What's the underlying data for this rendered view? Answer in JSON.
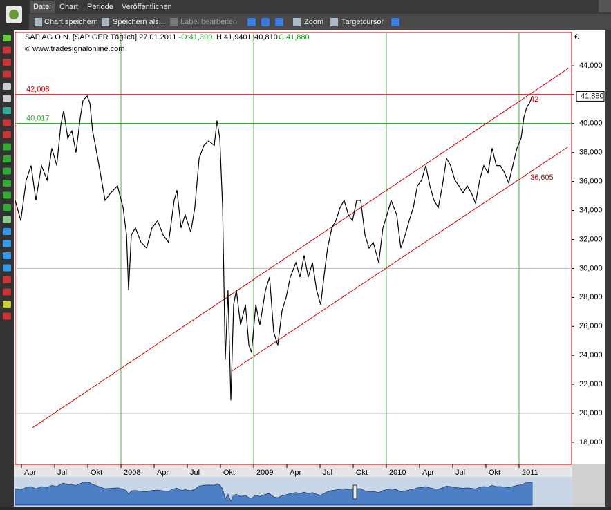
{
  "menu": [
    "Datei",
    "Chart",
    "Periode",
    "Veröffentlichen"
  ],
  "toolbar": [
    "Chart speichern",
    "Speichern als...",
    "Label bearbeiten",
    "Zoom",
    "Targetcursor"
  ],
  "chart_data": {
    "type": "line",
    "title": "SAP AG O.N. [SAP GER  Täglich] 27.01.2011 -",
    "ohlc": [
      "O:41,390",
      "H:41,940",
      "L:40,810",
      "C:41,880"
    ],
    "subtitle": "© www.tradesignalonline.com",
    "unit": "€",
    "color": "#000000",
    "x": [
      2007.203,
      2007.245,
      2007.286,
      2007.323,
      2007.359,
      2007.401,
      2007.443,
      2007.479,
      2007.516,
      2007.547,
      2007.568,
      2007.599,
      2007.63,
      2007.661,
      2007.693,
      2007.714,
      2007.745,
      2007.766,
      2007.786,
      2007.807,
      2007.844,
      2007.88,
      2007.922,
      2007.974,
      2008.016,
      2008.042,
      2008.057,
      2008.078,
      2008.109,
      2008.151,
      2008.193,
      2008.234,
      2008.276,
      2008.318,
      2008.359,
      2008.401,
      2008.422,
      2008.453,
      2008.484,
      2008.526,
      2008.557,
      2008.589,
      2008.625,
      2008.661,
      2008.703,
      2008.724,
      2008.745,
      2008.766,
      2008.786,
      2008.807,
      2008.828,
      2008.849,
      2008.87,
      2008.901,
      2008.938,
      2008.964,
      2008.984,
      2009.016,
      2009.047,
      2009.089,
      2009.12,
      2009.151,
      2009.182,
      2009.214,
      2009.245,
      2009.276,
      2009.318,
      2009.349,
      2009.38,
      2009.411,
      2009.443,
      2009.474,
      2009.505,
      2009.536,
      2009.557,
      2009.589,
      2009.62,
      2009.651,
      2009.682,
      2009.714,
      2009.745,
      2009.776,
      2009.807,
      2009.839,
      2009.87,
      2009.901,
      2009.943,
      2009.974,
      2010.005,
      2010.036,
      2010.078,
      2010.109,
      2010.141,
      2010.172,
      2010.203,
      2010.234,
      2010.266,
      2010.297,
      2010.328,
      2010.359,
      2010.391,
      2010.422,
      2010.453,
      2010.484,
      2010.516,
      2010.547,
      2010.578,
      2010.609,
      2010.641,
      2010.672,
      2010.703,
      2010.734,
      2010.766,
      2010.797,
      2010.828,
      2010.859,
      2010.891,
      2010.922,
      2010.953,
      2010.984,
      2011.016,
      2011.036,
      2011.057,
      2011.078,
      2011.099
    ],
    "values": [
      34700,
      33300,
      36100,
      37100,
      34700,
      37100,
      36100,
      38300,
      37100,
      39900,
      40900,
      39000,
      39500,
      38000,
      40400,
      41600,
      41900,
      41400,
      39500,
      38500,
      36600,
      34700,
      35200,
      35700,
      34200,
      32300,
      28500,
      32300,
      32800,
      31800,
      31400,
      32800,
      33300,
      32300,
      31800,
      34700,
      35400,
      32800,
      33700,
      32500,
      34200,
      37600,
      38500,
      38800,
      38500,
      40200,
      39000,
      34200,
      23700,
      28500,
      20900,
      27500,
      28500,
      26100,
      27500,
      24700,
      24200,
      27500,
      26100,
      28500,
      29400,
      25600,
      24700,
      27100,
      28000,
      29400,
      30400,
      29400,
      30900,
      29400,
      30400,
      28500,
      27500,
      29900,
      31400,
      32800,
      33300,
      34200,
      34700,
      33700,
      33300,
      34700,
      34700,
      32300,
      31400,
      31800,
      30400,
      32800,
      33700,
      34700,
      33700,
      31400,
      32300,
      33300,
      34200,
      35700,
      36100,
      37100,
      35700,
      34700,
      34200,
      35700,
      37600,
      37100,
      36100,
      35700,
      35200,
      35700,
      35200,
      34500,
      36100,
      37100,
      36600,
      38300,
      37100,
      37100,
      36600,
      35900,
      37100,
      38300,
      39000,
      40400,
      41100,
      41400,
      41900
    ],
    "xlim": [
      2007.203,
      2011.396
    ],
    "ylim": [
      16470,
      46290
    ],
    "xticks": [
      {
        "value": 2007.25,
        "label": "Apr"
      },
      {
        "value": 2007.5,
        "label": "Jul"
      },
      {
        "value": 2007.75,
        "label": "Okt"
      },
      {
        "value": 2008,
        "label": "2008"
      },
      {
        "value": 2008.25,
        "label": "Apr"
      },
      {
        "value": 2008.5,
        "label": "Jul"
      },
      {
        "value": 2008.75,
        "label": "Okt"
      },
      {
        "value": 2009,
        "label": "2009"
      },
      {
        "value": 2009.25,
        "label": "Apr"
      },
      {
        "value": 2009.5,
        "label": "Jul"
      },
      {
        "value": 2009.75,
        "label": "Okt"
      },
      {
        "value": 2010,
        "label": "2010"
      },
      {
        "value": 2010.25,
        "label": "Apr"
      },
      {
        "value": 2010.5,
        "label": "Jul"
      },
      {
        "value": 2010.75,
        "label": "Okt"
      },
      {
        "value": 2011,
        "label": "2011"
      }
    ],
    "yticks": [
      {
        "value": 18000,
        "label": "18,000"
      },
      {
        "value": 20000,
        "label": "20,000"
      },
      {
        "value": 22000,
        "label": "22,000"
      },
      {
        "value": 24000,
        "label": "24,000"
      },
      {
        "value": 26000,
        "label": "26,000"
      },
      {
        "value": 28000,
        "label": "28,000"
      },
      {
        "value": 30000,
        "label": "30,000"
      },
      {
        "value": 32000,
        "label": "32,000"
      },
      {
        "value": 34000,
        "label": "34,000"
      },
      {
        "value": 36000,
        "label": "36,000"
      },
      {
        "value": 38000,
        "label": "38,000"
      },
      {
        "value": 40000,
        "label": "40,000"
      },
      {
        "value": 42000,
        "label": "42,000"
      },
      {
        "value": 44000,
        "label": "44,000"
      }
    ],
    "xgrid": [
      2008,
      2009,
      2010,
      2011
    ],
    "xgrid_color": "#4caf50",
    "ygrid": [
      20000,
      30000
    ],
    "hlines": [
      {
        "value": 42008,
        "label": "42,008",
        "color": "#cc0000"
      },
      {
        "value": 40017,
        "label": "40,017",
        "color": "#3aa83a"
      }
    ],
    "trendlines": [
      {
        "x": [
          2007.333,
          2011.37
        ],
        "values": [
          19000,
          43800
        ],
        "color": "#dd0000"
      },
      {
        "x": [
          2008.833,
          2011.37
        ],
        "values": [
          22900,
          38400
        ],
        "color": "#dd0000"
      }
    ],
    "annotations": [
      "42",
      "36,605"
    ],
    "last": {
      "value": 41880,
      "label": "41,880"
    }
  }
}
